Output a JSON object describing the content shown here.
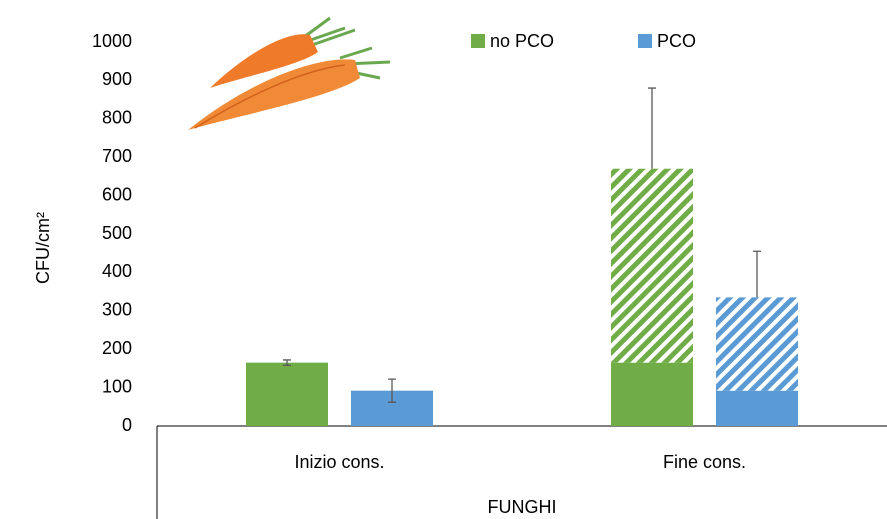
{
  "chart_data": {
    "type": "bar",
    "y_label": "CFU/cm²",
    "x_label": "FUNGHI",
    "categories": [
      "Inizio cons.",
      "Fine cons."
    ],
    "series": [
      {
        "name": "no PCO",
        "color": "#70ad47",
        "values": [
          165,
          165
        ],
        "stacked_values": [
          null,
          505
        ],
        "errors": [
          7,
          210
        ]
      },
      {
        "name": "PCO",
        "color": "#5b9bd5",
        "values": [
          92,
          92
        ],
        "stacked_values": [
          null,
          243
        ],
        "errors": [
          30,
          120
        ]
      }
    ],
    "ylim": [
      0,
      1000
    ],
    "yticks": [
      0,
      100,
      200,
      300,
      400,
      500,
      600,
      700,
      800,
      900,
      1000
    ],
    "grid": false
  }
}
